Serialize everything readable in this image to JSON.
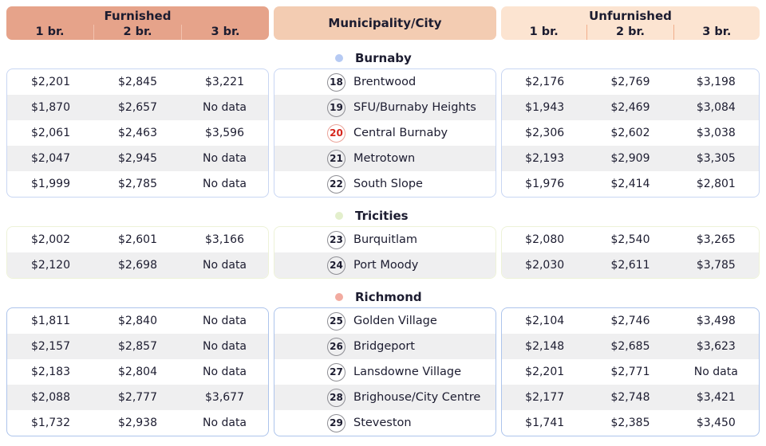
{
  "header": {
    "furnished_label": "Furnished",
    "municipality_label": "Municipality/City",
    "unfurnished_label": "Unfurnished",
    "bedroom_columns": [
      "1 br.",
      "2 br.",
      "3 br."
    ]
  },
  "colors": {
    "header-left-bg": "#e6a38a",
    "header-mid-bg": "#f3ccb2",
    "header-right-bg": "#fce4d1",
    "divider-left": "#f2c2ae",
    "divider-right": "#f1af8d",
    "stripe": "#efeff0",
    "text": "#1c1c30",
    "highlight-red": "#d6261d"
  },
  "chart_data": {
    "type": "table",
    "column_groups": [
      "Furnished",
      "Municipality/City",
      "Unfurnished"
    ],
    "bedroom_columns": [
      "1 br.",
      "2 br.",
      "3 br."
    ],
    "sections": [
      {
        "name": "Burnaby",
        "dot_color": "#b6caf3",
        "border_color": "#c8d6f3",
        "rows": [
          {
            "num": "18",
            "name": "Brentwood",
            "highlight": false,
            "furnished": [
              "$2,201",
              "$2,845",
              "$3,221"
            ],
            "unfurnished": [
              "$2,176",
              "$2,769",
              "$3,198"
            ]
          },
          {
            "num": "19",
            "name": "SFU/Burnaby Heights",
            "highlight": false,
            "furnished": [
              "$1,870",
              "$2,657",
              "No data"
            ],
            "unfurnished": [
              "$1,943",
              "$2,469",
              "$3,084"
            ]
          },
          {
            "num": "20",
            "name": "Central Burnaby",
            "highlight": true,
            "furnished": [
              "$2,061",
              "$2,463",
              "$3,596"
            ],
            "unfurnished": [
              "$2,306",
              "$2,602",
              "$3,038"
            ]
          },
          {
            "num": "21",
            "name": "Metrotown",
            "highlight": false,
            "furnished": [
              "$2,047",
              "$2,945",
              "No data"
            ],
            "unfurnished": [
              "$2,193",
              "$2,909",
              "$3,305"
            ]
          },
          {
            "num": "22",
            "name": "South Slope",
            "highlight": false,
            "furnished": [
              "$1,999",
              "$2,785",
              "No data"
            ],
            "unfurnished": [
              "$1,976",
              "$2,414",
              "$2,801"
            ]
          }
        ]
      },
      {
        "name": "Tricities",
        "dot_color": "#e3efcc",
        "border_color": "#edf2d8",
        "rows": [
          {
            "num": "23",
            "name": "Burquitlam",
            "highlight": false,
            "furnished": [
              "$2,002",
              "$2,601",
              "$3,166"
            ],
            "unfurnished": [
              "$2,080",
              "$2,540",
              "$3,265"
            ]
          },
          {
            "num": "24",
            "name": "Port Moody",
            "highlight": false,
            "furnished": [
              "$2,120",
              "$2,698",
              "No data"
            ],
            "unfurnished": [
              "$2,030",
              "$2,611",
              "$3,785"
            ]
          }
        ]
      },
      {
        "name": "Richmond",
        "dot_color": "#f2aba0",
        "border_color": "#adc4ec",
        "rows": [
          {
            "num": "25",
            "name": "Golden Village",
            "highlight": false,
            "furnished": [
              "$1,811",
              "$2,840",
              "No data"
            ],
            "unfurnished": [
              "$2,104",
              "$2,746",
              "$3,498"
            ]
          },
          {
            "num": "26",
            "name": "Bridgeport",
            "highlight": false,
            "furnished": [
              "$2,157",
              "$2,857",
              "No data"
            ],
            "unfurnished": [
              "$2,148",
              "$2,685",
              "$3,623"
            ]
          },
          {
            "num": "27",
            "name": "Lansdowne Village",
            "highlight": false,
            "furnished": [
              "$2,183",
              "$2,804",
              "No data"
            ],
            "unfurnished": [
              "$2,201",
              "$2,771",
              "No data"
            ]
          },
          {
            "num": "28",
            "name": "Brighouse/City Centre",
            "highlight": false,
            "furnished": [
              "$2,088",
              "$2,777",
              "$3,677"
            ],
            "unfurnished": [
              "$2,177",
              "$2,748",
              "$3,421"
            ]
          },
          {
            "num": "29",
            "name": "Steveston",
            "highlight": false,
            "furnished": [
              "$1,732",
              "$2,938",
              "No data"
            ],
            "unfurnished": [
              "$1,741",
              "$2,385",
              "$3,450"
            ]
          }
        ]
      }
    ]
  }
}
